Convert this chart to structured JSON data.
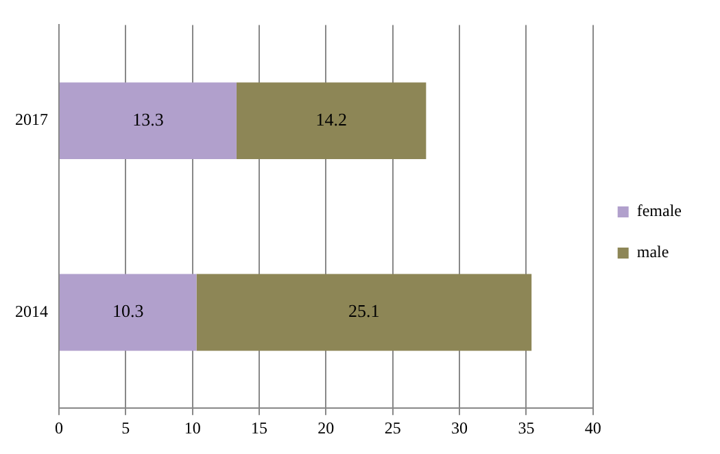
{
  "chart_data": {
    "type": "bar",
    "orientation": "horizontal",
    "stacked": true,
    "categories": [
      "2017",
      "2014"
    ],
    "series": [
      {
        "name": "female",
        "color": "#b1a0cc",
        "values": [
          13.3,
          10.3
        ]
      },
      {
        "name": "male",
        "color": "#8d8656",
        "values": [
          14.2,
          25.1
        ]
      }
    ],
    "xlim": [
      0,
      40
    ],
    "xticks": [
      0,
      5,
      10,
      15,
      20,
      25,
      30,
      35,
      40
    ],
    "grid": "x",
    "legend": "right",
    "data_labels": true
  }
}
